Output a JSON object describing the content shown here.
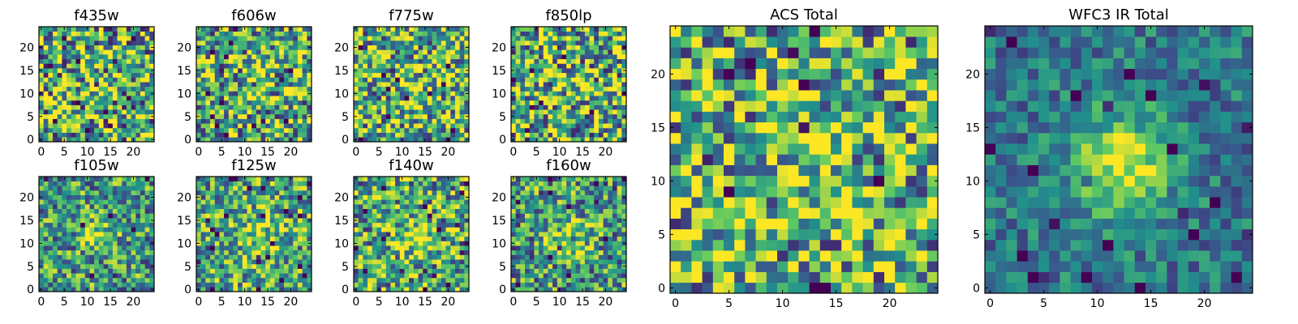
{
  "figure": {
    "colormap": "viridis",
    "colormap_stops": [
      "#440154",
      "#3b528b",
      "#21918c",
      "#5ec962",
      "#fde725"
    ]
  },
  "chart_data": [
    {
      "type": "heatmap",
      "title": "f435w",
      "grid_size": [
        25,
        25
      ],
      "xticks": [
        0,
        5,
        10,
        15,
        20
      ],
      "yticks": [
        0,
        5,
        10,
        15,
        20
      ],
      "xlim": [
        -0.5,
        24.5
      ],
      "ylim": [
        -0.5,
        24.5
      ],
      "values_desc": "pixel noise, no visible source"
    },
    {
      "type": "heatmap",
      "title": "f606w",
      "grid_size": [
        25,
        25
      ],
      "xticks": [
        0,
        5,
        10,
        15,
        20
      ],
      "yticks": [
        0,
        5,
        10,
        15,
        20
      ],
      "xlim": [
        -0.5,
        24.5
      ],
      "ylim": [
        -0.5,
        24.5
      ]
    },
    {
      "type": "heatmap",
      "title": "f775w",
      "grid_size": [
        25,
        25
      ],
      "xticks": [
        0,
        5,
        10,
        15,
        20
      ],
      "yticks": [
        0,
        5,
        10,
        15,
        20
      ],
      "xlim": [
        -0.5,
        24.5
      ],
      "ylim": [
        -0.5,
        24.5
      ]
    },
    {
      "type": "heatmap",
      "title": "f850lp",
      "grid_size": [
        25,
        25
      ],
      "xticks": [
        0,
        5,
        10,
        15,
        20
      ],
      "yticks": [
        0,
        5,
        10,
        15,
        20
      ],
      "xlim": [
        -0.5,
        24.5
      ],
      "ylim": [
        -0.5,
        24.5
      ]
    },
    {
      "type": "heatmap",
      "title": "f105w",
      "grid_size": [
        25,
        25
      ],
      "xticks": [
        0,
        5,
        10,
        15,
        20
      ],
      "yticks": [
        0,
        5,
        10,
        15,
        20
      ],
      "xlim": [
        -0.5,
        24.5
      ],
      "ylim": [
        -0.5,
        24.5
      ]
    },
    {
      "type": "heatmap",
      "title": "f125w",
      "grid_size": [
        25,
        25
      ],
      "xticks": [
        0,
        5,
        10,
        15,
        20
      ],
      "yticks": [
        0,
        5,
        10,
        15,
        20
      ],
      "xlim": [
        -0.5,
        24.5
      ],
      "ylim": [
        -0.5,
        24.5
      ]
    },
    {
      "type": "heatmap",
      "title": "f140w",
      "grid_size": [
        25,
        25
      ],
      "xticks": [
        0,
        5,
        10,
        15,
        20
      ],
      "yticks": [
        0,
        5,
        10,
        15,
        20
      ],
      "xlim": [
        -0.5,
        24.5
      ],
      "ylim": [
        -0.5,
        24.5
      ]
    },
    {
      "type": "heatmap",
      "title": "f160w",
      "grid_size": [
        25,
        25
      ],
      "xticks": [
        0,
        5,
        10,
        15,
        20
      ],
      "yticks": [
        0,
        5,
        10,
        15,
        20
      ],
      "xlim": [
        -0.5,
        24.5
      ],
      "ylim": [
        -0.5,
        24.5
      ]
    },
    {
      "type": "heatmap",
      "title": "ACS Total",
      "grid_size": [
        25,
        25
      ],
      "xticks": [
        0,
        5,
        10,
        15,
        20
      ],
      "yticks": [
        0,
        5,
        10,
        15,
        20
      ],
      "xlim": [
        -0.5,
        24.5
      ],
      "ylim": [
        -0.5,
        24.5
      ]
    },
    {
      "type": "heatmap",
      "title": "WFC3 IR Total",
      "grid_size": [
        25,
        25
      ],
      "xticks": [
        0,
        5,
        10,
        15,
        20
      ],
      "yticks": [
        0,
        5,
        10,
        15,
        20
      ],
      "xlim": [
        -0.5,
        24.5
      ],
      "ylim": [
        -0.5,
        24.5
      ]
    }
  ]
}
